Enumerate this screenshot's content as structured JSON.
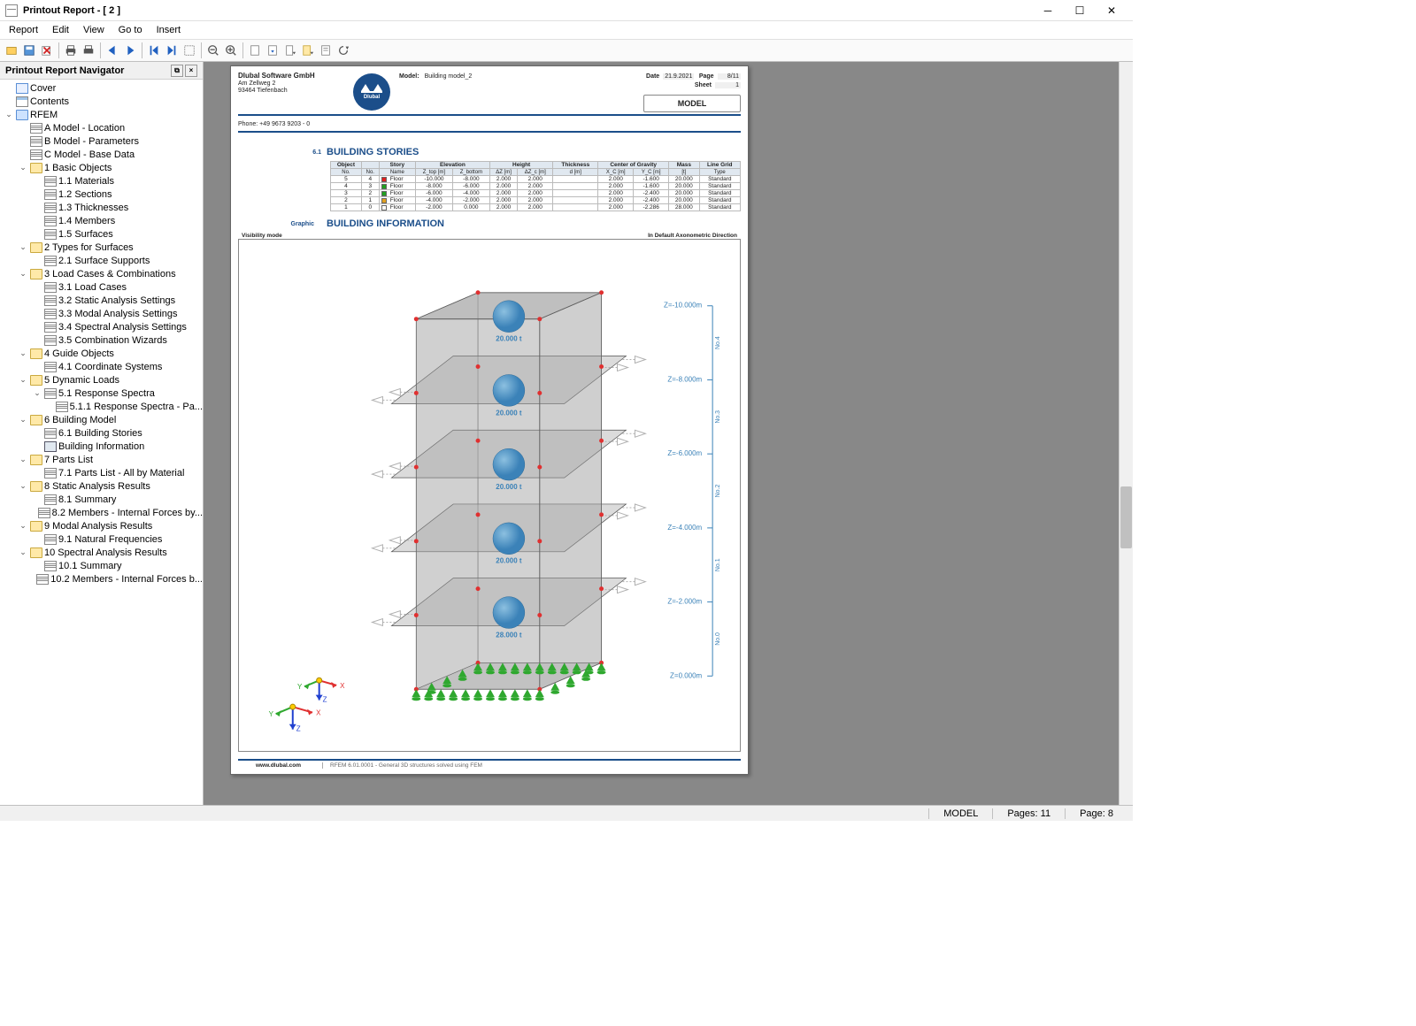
{
  "window": {
    "title": "Printout Report - [ 2 ]"
  },
  "menu": [
    "Report",
    "Edit",
    "View",
    "Go to",
    "Insert"
  ],
  "navigator": {
    "title": "Printout Report Navigator",
    "tree": [
      {
        "d": 0,
        "t": "",
        "i": "cover",
        "l": "Cover"
      },
      {
        "d": 0,
        "t": "",
        "i": "list",
        "l": "Contents"
      },
      {
        "d": 0,
        "t": "v",
        "i": "folder-b",
        "l": "RFEM"
      },
      {
        "d": 1,
        "t": "",
        "i": "table",
        "l": "A Model - Location"
      },
      {
        "d": 1,
        "t": "",
        "i": "table",
        "l": "B Model - Parameters"
      },
      {
        "d": 1,
        "t": "",
        "i": "table",
        "l": "C Model - Base Data"
      },
      {
        "d": 1,
        "t": "v",
        "i": "folder",
        "l": "1 Basic Objects"
      },
      {
        "d": 2,
        "t": "",
        "i": "table",
        "l": "1.1 Materials"
      },
      {
        "d": 2,
        "t": "",
        "i": "table",
        "l": "1.2 Sections"
      },
      {
        "d": 2,
        "t": "",
        "i": "table",
        "l": "1.3 Thicknesses"
      },
      {
        "d": 2,
        "t": "",
        "i": "table",
        "l": "1.4 Members"
      },
      {
        "d": 2,
        "t": "",
        "i": "table",
        "l": "1.5 Surfaces"
      },
      {
        "d": 1,
        "t": "v",
        "i": "folder",
        "l": "2 Types for Surfaces"
      },
      {
        "d": 2,
        "t": "",
        "i": "table",
        "l": "2.1 Surface Supports"
      },
      {
        "d": 1,
        "t": "v",
        "i": "folder",
        "l": "3 Load Cases & Combinations"
      },
      {
        "d": 2,
        "t": "",
        "i": "table",
        "l": "3.1 Load Cases"
      },
      {
        "d": 2,
        "t": "",
        "i": "table",
        "l": "3.2 Static Analysis Settings"
      },
      {
        "d": 2,
        "t": "",
        "i": "table",
        "l": "3.3 Modal Analysis Settings"
      },
      {
        "d": 2,
        "t": "",
        "i": "table",
        "l": "3.4 Spectral Analysis Settings"
      },
      {
        "d": 2,
        "t": "",
        "i": "table",
        "l": "3.5 Combination Wizards"
      },
      {
        "d": 1,
        "t": "v",
        "i": "folder",
        "l": "4 Guide Objects"
      },
      {
        "d": 2,
        "t": "",
        "i": "table",
        "l": "4.1 Coordinate Systems"
      },
      {
        "d": 1,
        "t": "v",
        "i": "folder",
        "l": "5 Dynamic Loads"
      },
      {
        "d": 2,
        "t": "v",
        "i": "table",
        "l": "5.1 Response Spectra"
      },
      {
        "d": 3,
        "t": "",
        "i": "table",
        "l": "5.1.1 Response Spectra - Pa..."
      },
      {
        "d": 1,
        "t": "v",
        "i": "folder",
        "l": "6 Building Model"
      },
      {
        "d": 2,
        "t": "",
        "i": "table",
        "l": "6.1 Building Stories"
      },
      {
        "d": 2,
        "t": "",
        "i": "graphic",
        "l": "Building Information"
      },
      {
        "d": 1,
        "t": "v",
        "i": "folder",
        "l": "7 Parts List"
      },
      {
        "d": 2,
        "t": "",
        "i": "table",
        "l": "7.1 Parts List - All by Material"
      },
      {
        "d": 1,
        "t": "v",
        "i": "folder",
        "l": "8 Static Analysis Results"
      },
      {
        "d": 2,
        "t": "",
        "i": "table",
        "l": "8.1 Summary"
      },
      {
        "d": 2,
        "t": "",
        "i": "table",
        "l": "8.2 Members - Internal Forces by..."
      },
      {
        "d": 1,
        "t": "v",
        "i": "folder",
        "l": "9 Modal Analysis Results"
      },
      {
        "d": 2,
        "t": "",
        "i": "table",
        "l": "9.1 Natural Frequencies"
      },
      {
        "d": 1,
        "t": "v",
        "i": "folder",
        "l": "10 Spectral Analysis Results"
      },
      {
        "d": 2,
        "t": "",
        "i": "table",
        "l": "10.1 Summary"
      },
      {
        "d": 2,
        "t": "",
        "i": "table",
        "l": "10.2 Members - Internal Forces b..."
      }
    ]
  },
  "page": {
    "company": "Dlubal Software GmbH",
    "addr1": "Am Zellweg 2",
    "addr2": "93464 Tiefenbach",
    "phone": "Phone: +49 9673 9203 - 0",
    "model_label": "Model:",
    "model_name": "Building model_2",
    "date_k": "Date",
    "date_v": "21.9.2021",
    "page_k": "Page",
    "page_v": "8/11",
    "sheet_k": "Sheet",
    "sheet_v": "1",
    "model_box": "MODEL",
    "logo_text": "Dlubal",
    "sec_num": "6.1",
    "sec_title": "BUILDING STORIES",
    "sec2_sub": "Graphic",
    "sec2_title": "BUILDING INFORMATION",
    "vis_mode": "Visibility mode",
    "vis_dir": "In Default Axonometric Direction",
    "footer_url": "www.dlubal.com",
    "footer_prog": "RFEM 6.01.0001 - General 3D structures solved using FEM"
  },
  "stories_table": {
    "head1": [
      "Object",
      "",
      "Story",
      "Elevation",
      "",
      "Height",
      "",
      "Thickness",
      "Center of Gravity",
      "",
      "Mass",
      "Line Grid"
    ],
    "head2": [
      "No.",
      "No.",
      "Name",
      "Z_top [m]",
      "Z_bottom",
      "ΔZ [m]",
      "ΔZ_c [m]",
      "d [m]",
      "X_C [m]",
      "Y_C [m]",
      "[t]",
      "Type"
    ],
    "rows": [
      {
        "obj": "5",
        "no": "4",
        "name": "Floor",
        "color": "#e02020",
        "ztop": "-10.000",
        "zbot": "-8.000",
        "dz": "2.000",
        "dzc": "2.000",
        "d": "",
        "xc": "2.000",
        "yc": "-1.600",
        "mass": "20.000",
        "type": "Standard"
      },
      {
        "obj": "4",
        "no": "3",
        "name": "Floor",
        "color": "#20a020",
        "ztop": "-8.000",
        "zbot": "-6.000",
        "dz": "2.000",
        "dzc": "2.000",
        "d": "",
        "xc": "2.000",
        "yc": "-1.600",
        "mass": "20.000",
        "type": "Standard"
      },
      {
        "obj": "3",
        "no": "2",
        "name": "Floor",
        "color": "#20a020",
        "ztop": "-6.000",
        "zbot": "-4.000",
        "dz": "2.000",
        "dzc": "2.000",
        "d": "",
        "xc": "2.000",
        "yc": "-2.400",
        "mass": "20.000",
        "type": "Standard"
      },
      {
        "obj": "2",
        "no": "1",
        "name": "Floor",
        "color": "#e0a020",
        "ztop": "-4.000",
        "zbot": "-2.000",
        "dz": "2.000",
        "dzc": "2.000",
        "d": "",
        "xc": "2.000",
        "yc": "-2.400",
        "mass": "20.000",
        "type": "Standard"
      },
      {
        "obj": "1",
        "no": "0",
        "name": "Floor",
        "color": "#ffffff",
        "ztop": "-2.000",
        "zbot": "0.000",
        "dz": "2.000",
        "dzc": "2.000",
        "d": "",
        "xc": "2.000",
        "yc": "-2.286",
        "mass": "28.000",
        "type": "Standard"
      }
    ]
  },
  "building_graphic": {
    "floors": 5,
    "z_labels": [
      "Z=-10.000m",
      "Z=-8.000m",
      "Z=-6.000m",
      "Z=-4.000m",
      "Z=-2.000m",
      "Z=0.000m"
    ],
    "no_labels": [
      "No.4",
      "No.3",
      "No.2",
      "No.1",
      "No.0"
    ],
    "mass_labels": [
      "20.000 t",
      "20.000 t",
      "20.000 t",
      "20.000 t",
      "28.000 t"
    ],
    "colors": {
      "wall": "#a8a8a8",
      "wall_stroke": "#606060",
      "floor_fill": "#b0b0b0",
      "floor_stroke": "#505050",
      "sphere": "#3b82b8",
      "node": "#e03030",
      "support": "#2fa82f",
      "arrow": "#b0b0b0",
      "bracket": "#3b82b8",
      "axis_x": "#e03030",
      "axis_y": "#2fa82f",
      "axis_z": "#2040d0"
    }
  },
  "status": {
    "model": "MODEL",
    "pages": "Pages: 11",
    "page": "Page: 8"
  }
}
